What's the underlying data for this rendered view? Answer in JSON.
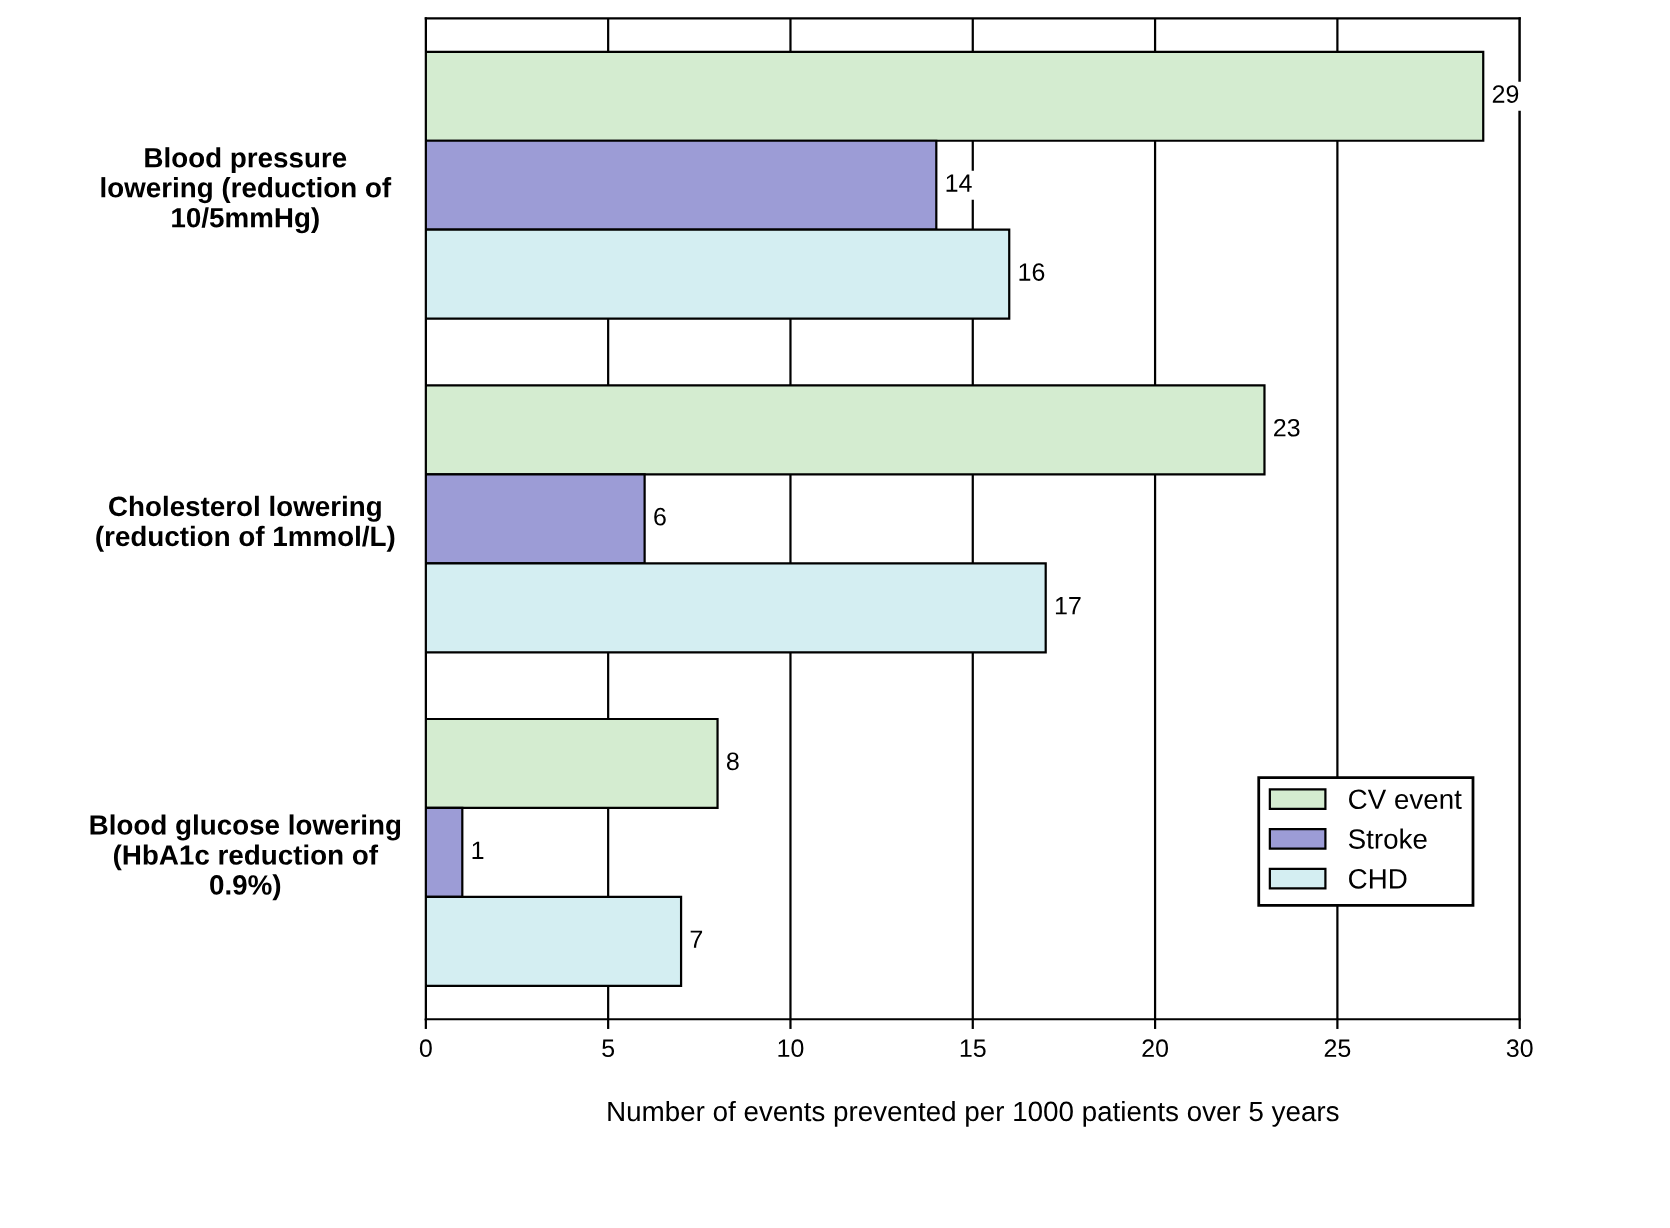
{
  "chart_data": {
    "type": "bar",
    "orientation": "horizontal",
    "xlabel": "Number of events prevented per 1000 patients over 5 years",
    "categories": [
      "Blood pressure\nlowering (reduction of\n10/5mmHg)",
      "Cholesterol lowering\n(reduction of 1mmol/L)",
      "Blood glucose lowering\n(HbA1c reduction of\n0.9%)"
    ],
    "series": [
      {
        "name": "CV event",
        "color": "#d4ecd0",
        "values": [
          29,
          23,
          8
        ]
      },
      {
        "name": "Stroke",
        "color": "#9c9cd6",
        "values": [
          14,
          6,
          1
        ]
      },
      {
        "name": "CHD",
        "color": "#d4eef2",
        "values": [
          16,
          17,
          7
        ]
      }
    ],
    "xlim": [
      0,
      30
    ],
    "xticks": [
      0,
      5,
      10,
      15,
      20,
      25,
      30
    ],
    "grid": "x",
    "legend": "bottom right",
    "data_labels": true
  }
}
